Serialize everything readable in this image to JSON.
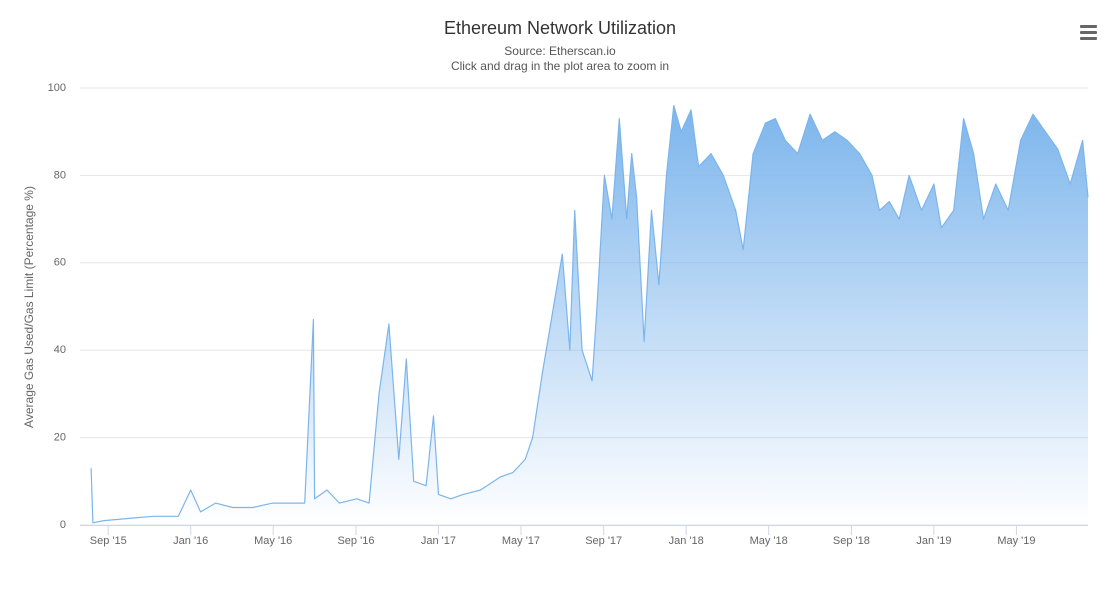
{
  "chart_data": {
    "type": "area",
    "title": "Ethereum Network Utilization",
    "subtitle": "Source: Etherscan.io",
    "annotation": "Click and drag in the plot area to zoom in",
    "y_label": "Average Gas Used/Gas Limit (Percentage %)",
    "color": "#7cb5ec",
    "grid": true,
    "x": [
      2015.598,
      2015.605,
      2015.65,
      2015.75,
      2015.85,
      2015.95,
      2016.0,
      2016.04,
      2016.1,
      2016.17,
      2016.25,
      2016.33,
      2016.4,
      2016.46,
      2016.495,
      2016.5,
      2016.55,
      2016.6,
      2016.67,
      2016.72,
      2016.76,
      2016.8,
      2016.84,
      2016.87,
      2016.9,
      2016.95,
      2016.98,
      2017.0,
      2017.05,
      2017.1,
      2017.17,
      2017.25,
      2017.3,
      2017.35,
      2017.38,
      2017.42,
      2017.45,
      2017.5,
      2017.53,
      2017.55,
      2017.58,
      2017.62,
      2017.64,
      2017.67,
      2017.7,
      2017.73,
      2017.76,
      2017.78,
      2017.8,
      2017.83,
      2017.86,
      2017.89,
      2017.92,
      2017.95,
      2017.98,
      2018.02,
      2018.05,
      2018.1,
      2018.15,
      2018.2,
      2018.23,
      2018.27,
      2018.32,
      2018.36,
      2018.4,
      2018.45,
      2018.5,
      2018.55,
      2018.6,
      2018.65,
      2018.7,
      2018.75,
      2018.78,
      2018.82,
      2018.86,
      2018.9,
      2018.95,
      2019.0,
      2019.03,
      2019.08,
      2019.12,
      2019.16,
      2019.2,
      2019.25,
      2019.3,
      2019.35,
      2019.4,
      2019.45,
      2019.5,
      2019.55,
      2019.6,
      2019.622
    ],
    "values": [
      13,
      0.5,
      1,
      1.5,
      2,
      2,
      8,
      3,
      5,
      4,
      4,
      5,
      5,
      5,
      47,
      6,
      8,
      5,
      6,
      5,
      30,
      46,
      15,
      38,
      10,
      9,
      25,
      7,
      6,
      7,
      8,
      11,
      12,
      15,
      20,
      35,
      45,
      62,
      40,
      72,
      40,
      33,
      50,
      80,
      70,
      93,
      70,
      85,
      75,
      42,
      72,
      55,
      80,
      96,
      90,
      95,
      82,
      85,
      80,
      72,
      63,
      85,
      92,
      93,
      88,
      85,
      94,
      88,
      90,
      88,
      85,
      80,
      72,
      74,
      70,
      80,
      72,
      78,
      68,
      72,
      93,
      85,
      70,
      78,
      72,
      88,
      94,
      90,
      86,
      78,
      88,
      75
    ],
    "xlim": [
      2015.553,
      2019.622
    ],
    "xticks": [
      {
        "value": 2015.667,
        "label": "Sep '15"
      },
      {
        "value": 2016.0,
        "label": "Jan '16"
      },
      {
        "value": 2016.333,
        "label": "May '16"
      },
      {
        "value": 2016.667,
        "label": "Sep '16"
      },
      {
        "value": 2017.0,
        "label": "Jan '17"
      },
      {
        "value": 2017.333,
        "label": "May '17"
      },
      {
        "value": 2017.667,
        "label": "Sep '17"
      },
      {
        "value": 2018.0,
        "label": "Jan '18"
      },
      {
        "value": 2018.333,
        "label": "May '18"
      },
      {
        "value": 2018.667,
        "label": "Sep '18"
      },
      {
        "value": 2019.0,
        "label": "Jan '19"
      },
      {
        "value": 2019.333,
        "label": "May '19"
      }
    ],
    "ylim": [
      0,
      100
    ],
    "yticks": [
      0,
      20,
      40,
      60,
      80,
      100
    ]
  }
}
